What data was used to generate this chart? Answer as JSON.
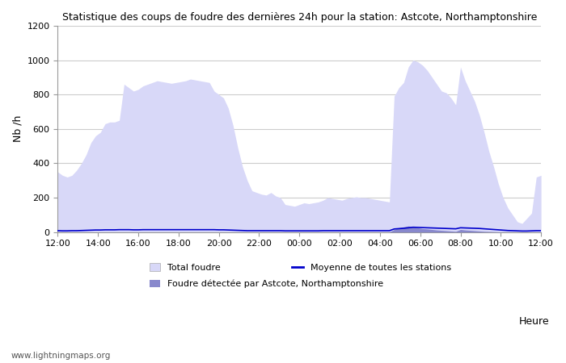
{
  "title": "Statistique des coups de foudre des dernières 24h pour la station: Astcote, Northamptonshire",
  "ylabel": "Nb /h",
  "xlabel": "Heure",
  "watermark": "www.lightningmaps.org",
  "x_ticks": [
    "12:00",
    "14:00",
    "16:00",
    "18:00",
    "20:00",
    "22:00",
    "00:00",
    "02:00",
    "04:00",
    "06:00",
    "08:00",
    "10:00",
    "12:00"
  ],
  "ylim": [
    0,
    1200
  ],
  "yticks": [
    0,
    200,
    400,
    600,
    800,
    1000,
    1200
  ],
  "legend": {
    "total_foudre_label": "Total foudre",
    "moyenne_label": "Moyenne de toutes les stations",
    "detected_label": "Foudre détectée par Astcote, Northamptonshire"
  },
  "color_fill_light": "#d8d8f8",
  "color_fill_dark": "#8888cc",
  "color_line": "#0000cc",
  "background_color": "#ffffff",
  "grid_color": "#cccccc",
  "total_foudre": [
    350,
    330,
    320,
    330,
    360,
    400,
    450,
    520,
    560,
    580,
    630,
    640,
    640,
    650,
    860,
    840,
    820,
    830,
    850,
    860,
    870,
    880,
    875,
    870,
    865,
    870,
    875,
    880,
    890,
    885,
    880,
    875,
    870,
    820,
    800,
    780,
    720,
    620,
    490,
    380,
    300,
    240,
    230,
    220,
    215,
    230,
    210,
    200,
    160,
    155,
    150,
    160,
    170,
    165,
    170,
    175,
    185,
    200,
    195,
    190,
    185,
    195,
    200,
    205,
    200,
    200,
    195,
    190,
    185,
    180,
    175,
    790,
    840,
    870,
    960,
    1000,
    990,
    970,
    940,
    900,
    860,
    820,
    810,
    780,
    740,
    960,
    880,
    820,
    760,
    680,
    580,
    470,
    380,
    280,
    200,
    140,
    100,
    60,
    50,
    80,
    110,
    320,
    330
  ],
  "detected_foudre": [
    0,
    0,
    0,
    0,
    0,
    0,
    0,
    0,
    0,
    0,
    0,
    0,
    0,
    0,
    0,
    0,
    0,
    0,
    0,
    0,
    0,
    0,
    0,
    0,
    0,
    0,
    0,
    0,
    0,
    0,
    0,
    0,
    0,
    0,
    0,
    0,
    0,
    0,
    0,
    0,
    0,
    0,
    0,
    0,
    0,
    0,
    0,
    0,
    0,
    0,
    0,
    0,
    0,
    0,
    0,
    0,
    0,
    0,
    0,
    0,
    0,
    0,
    0,
    0,
    0,
    0,
    0,
    0,
    0,
    0,
    0,
    15,
    25,
    30,
    35,
    30,
    25,
    20,
    18,
    15,
    12,
    10,
    8,
    6,
    4,
    15,
    12,
    10,
    8,
    6,
    4,
    3,
    2,
    1,
    0,
    0,
    0,
    0,
    0,
    0,
    0,
    0,
    0
  ],
  "moyenne": [
    8,
    7,
    7,
    8,
    8,
    9,
    10,
    11,
    12,
    12,
    13,
    13,
    13,
    14,
    14,
    14,
    13,
    13,
    14,
    14,
    14,
    14,
    14,
    14,
    14,
    14,
    14,
    14,
    14,
    14,
    14,
    14,
    14,
    14,
    13,
    13,
    12,
    11,
    10,
    9,
    8,
    8,
    8,
    8,
    8,
    8,
    8,
    8,
    7,
    7,
    7,
    7,
    7,
    7,
    7,
    7,
    8,
    8,
    8,
    8,
    8,
    8,
    8,
    8,
    8,
    8,
    8,
    8,
    8,
    8,
    8,
    18,
    20,
    22,
    25,
    28,
    27,
    26,
    25,
    24,
    23,
    22,
    21,
    20,
    19,
    25,
    24,
    23,
    22,
    21,
    19,
    17,
    15,
    13,
    11,
    9,
    8,
    7,
    6,
    6,
    7,
    8,
    8
  ]
}
